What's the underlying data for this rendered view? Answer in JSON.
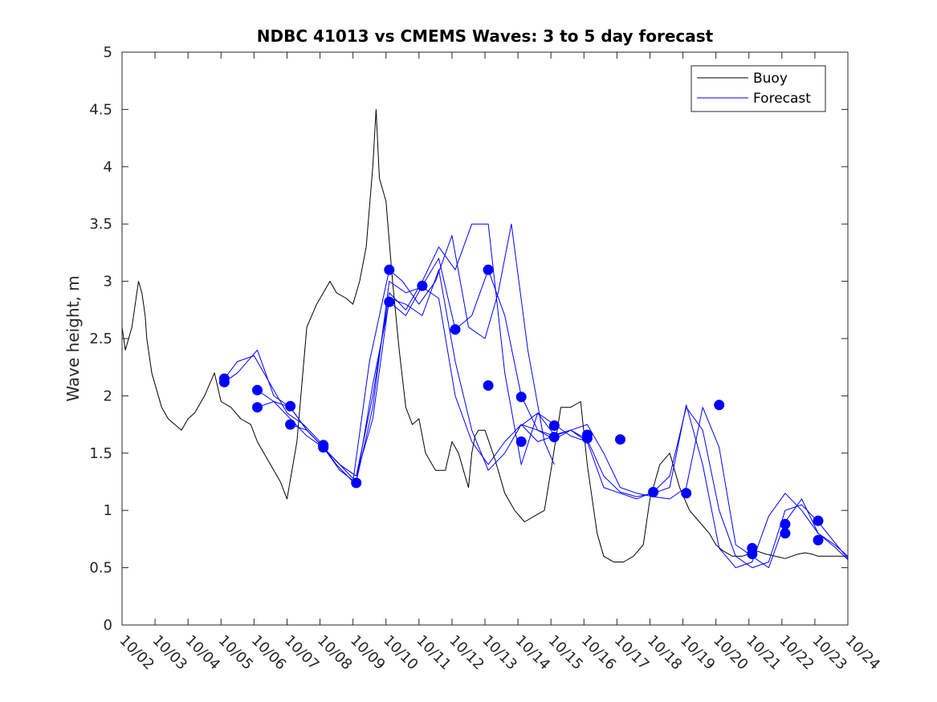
{
  "chart_data": {
    "type": "line",
    "title": "NDBC 41013 vs CMEMS Waves: 3 to 5 day forecast",
    "xlabel": "",
    "ylabel": "Wave height, m",
    "xlim": [
      0,
      22
    ],
    "ylim": [
      0,
      5
    ],
    "yticks": [
      0,
      0.5,
      1,
      1.5,
      2,
      2.5,
      3,
      3.5,
      4,
      4.5,
      5
    ],
    "ytick_labels": [
      "0",
      "0.5",
      "1",
      "1.5",
      "2",
      "2.5",
      "3",
      "3.5",
      "4",
      "4.5",
      "5"
    ],
    "x_tick_labels": [
      "10/02",
      "10/03",
      "10/04",
      "10/05",
      "10/06",
      "10/07",
      "10/08",
      "10/09",
      "10/10",
      "10/11",
      "10/12",
      "10/13",
      "10/14",
      "10/15",
      "10/16",
      "10/17",
      "10/18",
      "10/19",
      "10/20",
      "10/21",
      "10/22",
      "10/23",
      "10/24"
    ],
    "x_units": "days since 10/02",
    "legend": {
      "position": "top-right",
      "entries": [
        "Buoy",
        "Forecast"
      ]
    },
    "colors": {
      "buoy": "#000000",
      "forecast": "#0000ff",
      "markers": "#0000ff"
    },
    "series": [
      {
        "name": "Buoy",
        "x": [
          0,
          0.1,
          0.2,
          0.3,
          0.4,
          0.5,
          0.6,
          0.7,
          0.75,
          0.8,
          0.9,
          1.0,
          1.2,
          1.4,
          1.6,
          1.8,
          2.0,
          2.2,
          2.5,
          2.8,
          3.0,
          3.3,
          3.6,
          3.9,
          4.1,
          4.2,
          4.3,
          4.5,
          4.8,
          5.0,
          5.3,
          5.6,
          5.9,
          6.1,
          6.3,
          6.5,
          6.8,
          7.0,
          7.2,
          7.4,
          7.6,
          7.7,
          7.8,
          8.0,
          8.2,
          8.4,
          8.6,
          8.8,
          9.0,
          9.2,
          9.5,
          9.8,
          10.0,
          10.2,
          10.4,
          10.5,
          10.6,
          10.7,
          10.8,
          11.0,
          11.3,
          11.6,
          11.9,
          12.2,
          12.5,
          12.8,
          13.0,
          13.3,
          13.6,
          13.9,
          14.1,
          14.4,
          14.6,
          14.9,
          15.2,
          15.5,
          15.8,
          16.0,
          16.3,
          16.6,
          16.9,
          17.2,
          17.5,
          17.8,
          18.0,
          18.2,
          18.5,
          18.8,
          19.0,
          19.2,
          19.5,
          19.8,
          20.1,
          20.3,
          20.5,
          20.7,
          20.9,
          21.1,
          21.3,
          21.5,
          21.7,
          22.0
        ],
        "y": [
          2.6,
          2.4,
          2.5,
          2.6,
          2.8,
          3.0,
          2.9,
          2.7,
          2.5,
          2.4,
          2.2,
          2.1,
          1.9,
          1.8,
          1.75,
          1.7,
          1.8,
          1.85,
          2.0,
          2.2,
          1.95,
          1.9,
          1.8,
          1.75,
          1.6,
          1.55,
          1.5,
          1.4,
          1.25,
          1.1,
          1.6,
          2.6,
          2.8,
          2.9,
          3.0,
          2.9,
          2.85,
          2.8,
          3.0,
          3.3,
          4.0,
          4.5,
          3.9,
          3.7,
          3.0,
          2.4,
          1.9,
          1.75,
          1.8,
          1.5,
          1.35,
          1.35,
          1.6,
          1.5,
          1.3,
          1.2,
          1.5,
          1.65,
          1.7,
          1.7,
          1.45,
          1.15,
          1.0,
          0.9,
          0.95,
          1.0,
          1.35,
          1.9,
          1.9,
          1.95,
          1.4,
          0.8,
          0.6,
          0.55,
          0.55,
          0.6,
          0.7,
          1.1,
          1.4,
          1.5,
          1.2,
          1.0,
          0.9,
          0.8,
          0.7,
          0.65,
          0.6,
          0.6,
          0.62,
          0.65,
          0.62,
          0.6,
          0.58,
          0.6,
          0.62,
          0.63,
          0.62,
          0.6,
          0.6,
          0.6,
          0.6,
          0.6
        ]
      },
      {
        "name": "Forecast 1",
        "x": [
          3.1,
          3.5,
          4.0,
          4.5,
          5.0,
          5.5,
          6.0,
          6.5,
          7.0,
          7.5,
          8.1,
          8.5,
          9.0,
          9.5,
          10.0,
          10.5,
          11.0,
          11.4,
          11.8,
          12.3,
          12.8,
          13.1
        ],
        "y": [
          2.15,
          2.3,
          2.35,
          2.1,
          1.85,
          1.75,
          1.6,
          1.4,
          1.25,
          2.3,
          3.1,
          3.0,
          2.8,
          3.0,
          3.4,
          2.6,
          2.5,
          2.9,
          3.5,
          2.4,
          1.6,
          1.4
        ]
      },
      {
        "name": "Forecast 2",
        "x": [
          3.1,
          3.5,
          4.1,
          4.6,
          5.1,
          5.6,
          6.1,
          6.6,
          7.1,
          7.6,
          8.1,
          8.6,
          9.1,
          9.6,
          10.1,
          10.6,
          11.1,
          11.6,
          12.1,
          12.6,
          13.1
        ],
        "y": [
          2.12,
          2.2,
          2.4,
          2.0,
          1.9,
          1.7,
          1.55,
          1.35,
          1.24,
          2.1,
          2.82,
          2.7,
          2.96,
          3.2,
          2.58,
          2.7,
          3.1,
          2.7,
          2.0,
          1.7,
          1.65
        ]
      },
      {
        "name": "Forecast 3",
        "x": [
          4.1,
          4.6,
          5.1,
          5.6,
          6.1,
          6.6,
          7.1,
          7.6,
          8.1,
          8.6,
          9.1,
          9.6,
          10.1,
          10.6,
          11.1,
          11.6,
          12.1,
          12.6,
          13.1,
          13.6,
          14.1
        ],
        "y": [
          2.05,
          1.95,
          1.9,
          1.7,
          1.55,
          1.4,
          1.3,
          2.0,
          2.9,
          2.75,
          3.0,
          3.3,
          3.1,
          3.5,
          3.5,
          2.2,
          1.4,
          1.85,
          1.75,
          1.65,
          1.6
        ]
      },
      {
        "name": "Forecast 4",
        "x": [
          4.1,
          4.6,
          5.1,
          5.6,
          6.1,
          6.6,
          7.1,
          7.6,
          8.1,
          8.6,
          9.1,
          9.6,
          10.1,
          10.6,
          11.1,
          11.6,
          12.1,
          12.6,
          13.1,
          13.6,
          14.1,
          14.6,
          15.1,
          15.6,
          16.1,
          16.6,
          17.1,
          17.6,
          18.1,
          18.6,
          19.1,
          19.6,
          20.1,
          20.6,
          21.1,
          21.6,
          22.0
        ],
        "y": [
          1.9,
          1.95,
          1.8,
          1.65,
          1.55,
          1.4,
          1.25,
          1.9,
          3.0,
          2.9,
          2.95,
          2.85,
          2.0,
          1.6,
          1.4,
          1.6,
          1.75,
          1.6,
          1.65,
          1.7,
          1.75,
          1.5,
          1.2,
          1.15,
          1.12,
          1.1,
          1.2,
          1.9,
          1.55,
          0.7,
          0.6,
          0.5,
          0.9,
          1.1,
          0.8,
          0.7,
          0.6
        ]
      },
      {
        "name": "Forecast 5",
        "x": [
          5.1,
          5.6,
          6.1,
          6.6,
          7.1,
          7.6,
          8.1,
          8.6,
          9.1,
          9.6,
          10.1,
          10.6,
          11.1,
          11.6,
          12.1,
          12.6,
          13.1,
          13.6,
          14.1,
          14.6,
          15.1,
          15.6,
          16.1,
          16.6,
          17.1,
          17.6,
          18.1,
          18.6,
          19.1,
          19.6,
          20.1,
          20.6,
          21.1,
          21.6,
          22.0
        ],
        "y": [
          1.75,
          1.7,
          1.55,
          1.4,
          1.3,
          1.8,
          2.85,
          2.8,
          2.7,
          3.1,
          2.3,
          1.7,
          1.35,
          1.5,
          1.75,
          1.7,
          1.62,
          1.7,
          1.6,
          1.2,
          1.15,
          1.1,
          1.16,
          1.3,
          1.9,
          1.7,
          1.0,
          0.6,
          0.5,
          0.55,
          1.0,
          1.05,
          0.9,
          0.72,
          0.58
        ]
      },
      {
        "name": "Forecast 6",
        "x": [
          12.1,
          12.6,
          13.1,
          13.6,
          14.1,
          14.6,
          15.1,
          15.6,
          16.1,
          16.6,
          17.1,
          17.6,
          18.1,
          18.6,
          19.1,
          19.6,
          20.1,
          20.6,
          21.1,
          21.6,
          22.0
        ],
        "y": [
          1.74,
          1.85,
          1.66,
          1.7,
          1.62,
          1.3,
          1.16,
          1.12,
          1.15,
          1.2,
          1.92,
          1.4,
          0.67,
          0.5,
          0.55,
          0.95,
          1.15,
          1.0,
          0.8,
          0.68,
          0.57
        ]
      }
    ],
    "markers": {
      "x": [
        3.1,
        3.1,
        4.1,
        4.1,
        5.1,
        5.1,
        6.1,
        6.1,
        7.1,
        8.1,
        8.1,
        9.1,
        10.1,
        11.1,
        11.1,
        12.1,
        12.1,
        13.1,
        13.1,
        14.1,
        14.1,
        15.1,
        16.1,
        17.1,
        18.1,
        19.1,
        19.1,
        20.1,
        20.1,
        21.1,
        21.1
      ],
      "y": [
        2.15,
        2.12,
        2.05,
        1.9,
        1.91,
        1.75,
        1.57,
        1.55,
        1.24,
        3.1,
        2.82,
        2.96,
        2.58,
        3.1,
        2.09,
        1.99,
        1.6,
        1.74,
        1.64,
        1.66,
        1.63,
        1.62,
        1.16,
        1.15,
        1.92,
        0.67,
        0.62,
        0.88,
        0.8,
        0.91,
        0.74
      ]
    }
  }
}
